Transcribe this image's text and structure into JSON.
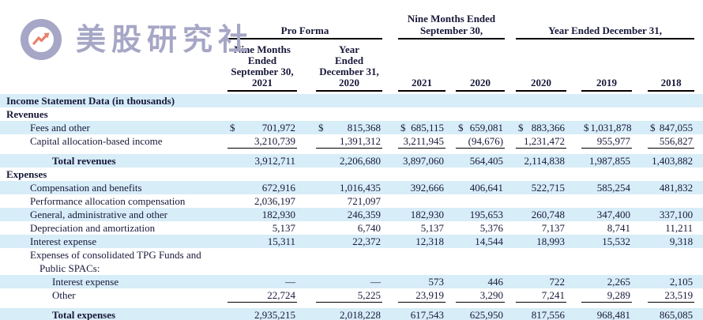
{
  "brand": {
    "name": "美股研究社",
    "icon": "trend-arrow-icon"
  },
  "colors": {
    "stripe": "#d7edf8",
    "text": "#18183a",
    "brand": "#a6a6c6",
    "arrow": "#e8816b"
  },
  "header": {
    "groups": [
      {
        "title": "Pro Forma",
        "cols": [
          [
            "Nine Months",
            "Ended",
            "September 30,",
            "2021"
          ],
          [
            "Year",
            "Ended",
            "December 31,",
            "2020"
          ]
        ]
      },
      {
        "title": "Nine Months Ended September 30,",
        "cols": [
          [
            "2021"
          ],
          [
            "2020"
          ]
        ]
      },
      {
        "title": "Year Ended December 31,",
        "cols": [
          [
            "2020"
          ],
          [
            "2019"
          ],
          [
            "2018"
          ]
        ]
      }
    ]
  },
  "table": {
    "rows": [
      {
        "spacer": true,
        "h": 3
      },
      {
        "label": "Income Statement Data (in thousands)",
        "bold": true,
        "ind": 0,
        "bg": "blue",
        "values": [
          "",
          "",
          "",
          "",
          "",
          "",
          ""
        ]
      },
      {
        "label": "Revenues",
        "bold": true,
        "ind": 0,
        "bg": "white",
        "values": [
          "",
          "",
          "",
          "",
          "",
          "",
          ""
        ]
      },
      {
        "label": "Fees and other",
        "ind": 1,
        "bg": "blue",
        "dollar": true,
        "values": [
          "701,972",
          "815,368",
          "685,115",
          "659,081",
          "883,366",
          "1,031,878",
          "847,055"
        ]
      },
      {
        "label": "Capital allocation-based income",
        "ind": 1,
        "bg": "white",
        "rule": true,
        "values": [
          "3,210,739",
          "1,391,312",
          "3,211,945",
          "(94,676)",
          "1,231,472",
          "955,977",
          "556,827"
        ]
      },
      {
        "spacer": true,
        "h": 7
      },
      {
        "label": "Total revenues",
        "bold": true,
        "ind": 3,
        "bg": "blue",
        "values": [
          "3,912,711",
          "2,206,680",
          "3,897,060",
          "564,405",
          "2,114,838",
          "1,987,855",
          "1,403,882"
        ]
      },
      {
        "label": "Expenses",
        "bold": true,
        "ind": 0,
        "bg": "white",
        "values": [
          "",
          "",
          "",
          "",
          "",
          "",
          ""
        ]
      },
      {
        "label": "Compensation and benefits",
        "ind": 1,
        "bg": "blue",
        "values": [
          "672,916",
          "1,016,435",
          "392,666",
          "406,641",
          "522,715",
          "585,254",
          "481,832"
        ]
      },
      {
        "label": "Performance allocation compensation",
        "ind": 1,
        "bg": "white",
        "values": [
          "2,036,197",
          "721,097",
          "",
          "",
          "",
          "",
          ""
        ]
      },
      {
        "label": "General, administrative and other",
        "ind": 1,
        "bg": "blue",
        "values": [
          "182,930",
          "246,359",
          "182,930",
          "195,653",
          "260,748",
          "347,400",
          "337,100"
        ]
      },
      {
        "label": "Depreciation and amortization",
        "ind": 1,
        "bg": "white",
        "values": [
          "5,137",
          "6,740",
          "5,137",
          "5,376",
          "7,137",
          "8,741",
          "11,211"
        ]
      },
      {
        "label": "Interest expense",
        "ind": 1,
        "bg": "blue",
        "values": [
          "15,311",
          "22,372",
          "12,318",
          "14,544",
          "18,993",
          "15,532",
          "9,318"
        ]
      },
      {
        "label": "Expenses of consolidated TPG Funds and",
        "ind": 1,
        "bg": "white",
        "values": [
          "",
          "",
          "",
          "",
          "",
          "",
          ""
        ]
      },
      {
        "label": "Public SPACs:",
        "ind": 2,
        "bg": "white",
        "values": [
          "",
          "",
          "",
          "",
          "",
          "",
          ""
        ]
      },
      {
        "label": "Interest expense",
        "ind": 3,
        "bg": "blue",
        "values": [
          "—",
          "—",
          "573",
          "446",
          "722",
          "2,265",
          "2,105"
        ]
      },
      {
        "label": "Other",
        "ind": 3,
        "bg": "white",
        "rule": true,
        "values": [
          "22,724",
          "5,225",
          "23,919",
          "3,290",
          "7,241",
          "9,289",
          "23,519"
        ]
      },
      {
        "spacer": true,
        "h": 7
      },
      {
        "label": "Total expenses",
        "bold": true,
        "ind": 3,
        "bg": "blue",
        "values": [
          "2,935,215",
          "2,018,228",
          "617,543",
          "625,950",
          "817,556",
          "968,481",
          "865,085"
        ]
      },
      {
        "spacer": true,
        "h": 6
      }
    ]
  }
}
